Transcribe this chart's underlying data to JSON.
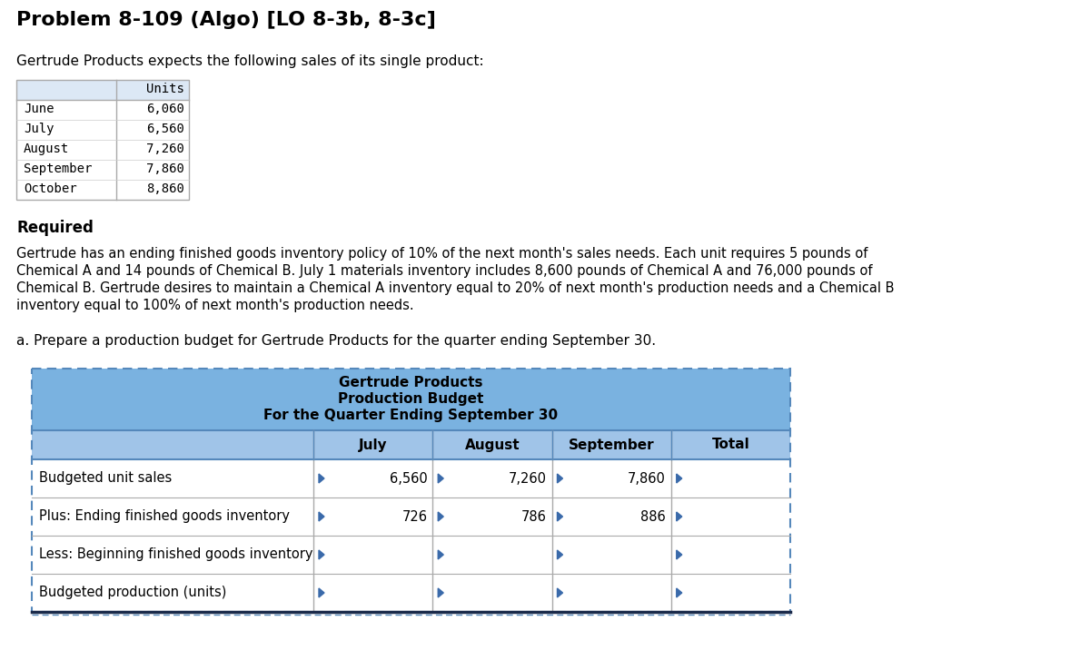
{
  "title": "Problem 8-109 (Algo) [LO 8-3b, 8-3c]",
  "intro_text": "Gertrude Products expects the following sales of its single product:",
  "sales_months": [
    "June",
    "July",
    "August",
    "September",
    "October"
  ],
  "sales_units": [
    "6,060",
    "6,560",
    "7,260",
    "7,860",
    "8,860"
  ],
  "sales_header": "Units",
  "required_label": "Required",
  "body_text_lines": [
    "Gertrude has an ending finished goods inventory policy of 10% of the next month's sales needs. Each unit requires 5 pounds of",
    "Chemical A and 14 pounds of Chemical B. July 1 materials inventory includes 8,600 pounds of Chemical A and 76,000 pounds of",
    "Chemical B. Gertrude desires to maintain a Chemical A inventory equal to 20% of next month's production needs and a Chemical B",
    "inventory equal to 100% of next month's production needs."
  ],
  "part_a_label": "a. Prepare a production budget for Gertrude Products for the quarter ending September 30.",
  "budget_title_line1": "Gertrude Products",
  "budget_title_line2": "Production Budget",
  "budget_title_line3": "For the Quarter Ending September 30",
  "budget_col_headers": [
    "July",
    "August",
    "September",
    "Total"
  ],
  "budget_rows": [
    [
      "Budgeted unit sales",
      "6,560",
      "7,260",
      "7,860",
      ""
    ],
    [
      "Plus: Ending finished goods inventory",
      "726",
      "786",
      "886",
      ""
    ],
    [
      "Less: Beginning finished goods inventory",
      "",
      "",
      "",
      ""
    ],
    [
      "Budgeted production (units)",
      "",
      "",
      "",
      ""
    ]
  ],
  "header_bg": "#7ab2e0",
  "col_header_bg": "#a0c4e8",
  "row_bg_white": "#ffffff",
  "outer_border_color": "#5588bb",
  "inner_line_color": "#aaaaaa",
  "thick_bottom_color": "#1a2a4a",
  "triangle_color": "#3a6aaa",
  "font_mono": "monospace"
}
